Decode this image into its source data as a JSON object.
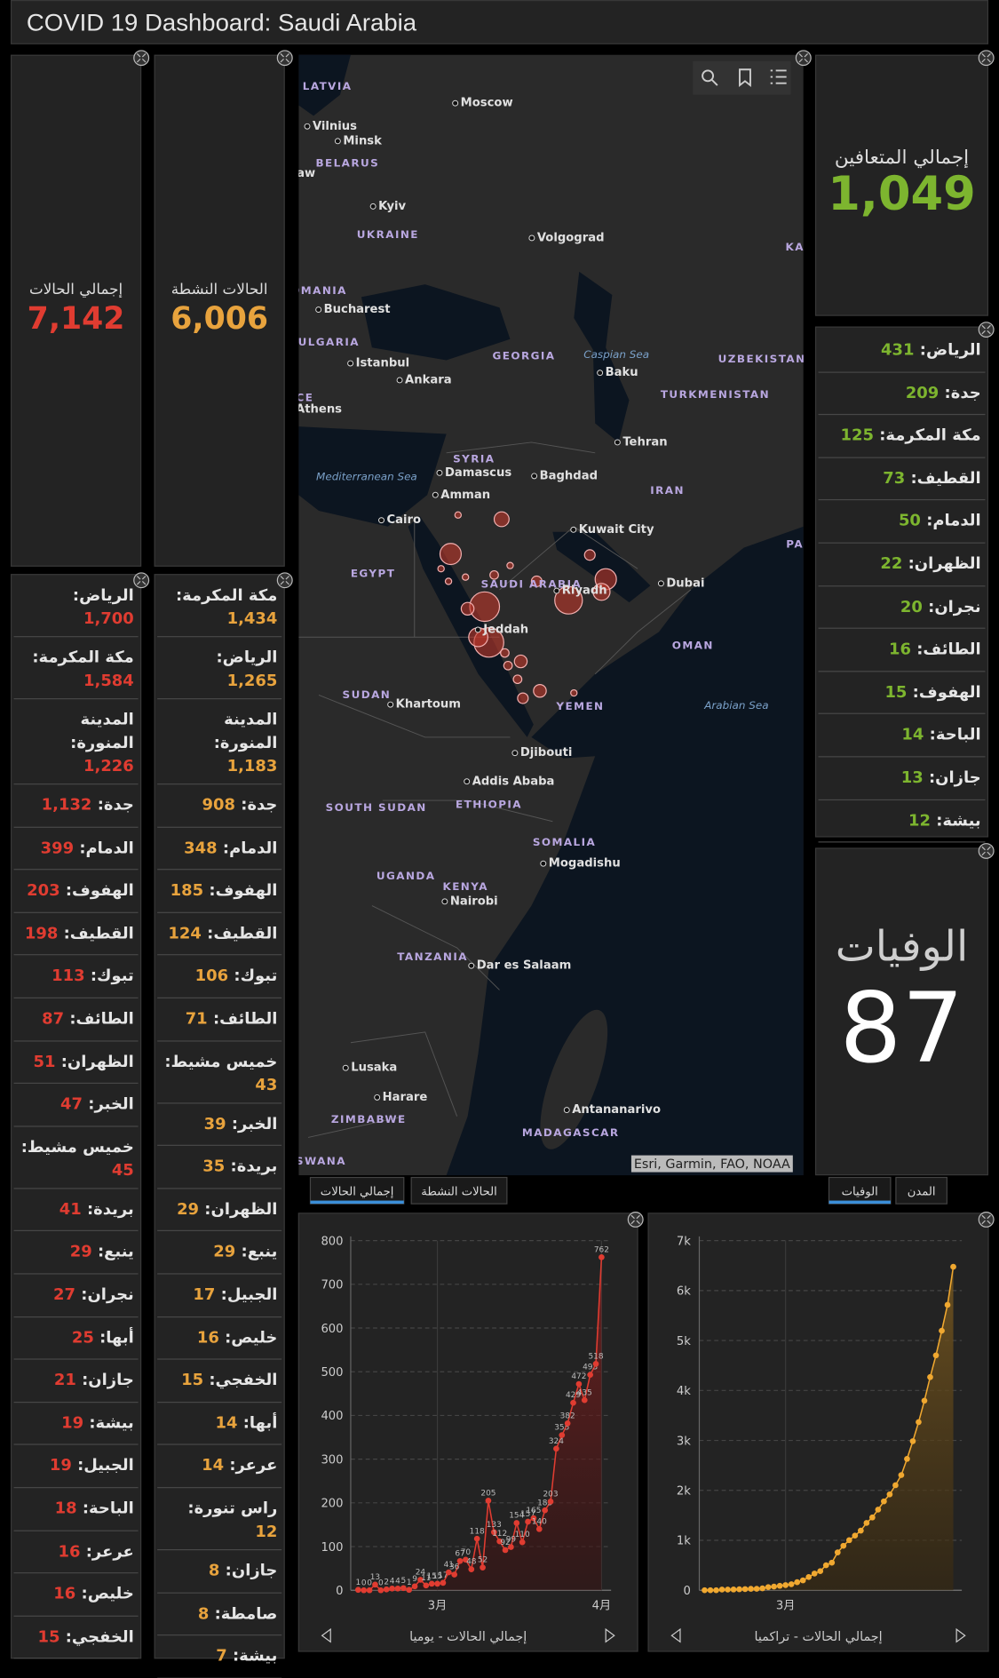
{
  "header": {
    "title": "COVID 19 Dashboard: Saudi Arabia"
  },
  "total_cases": {
    "label": "إجمالي الحالات",
    "value": "7,142"
  },
  "active_cases": {
    "label": "الحالات النشطة",
    "value": "6,006"
  },
  "recovered": {
    "label": "إجمالي المتعافين",
    "value": "1,049"
  },
  "deaths": {
    "label": "الوفيات",
    "value": "87"
  },
  "cases_by_city": [
    {
      "name": "الرياض:",
      "value": "1,700"
    },
    {
      "name": "مكة المكرمة:",
      "value": "1,584"
    },
    {
      "name": "المدينة المنورة:",
      "value": "1,226"
    },
    {
      "name": "جدة:",
      "value": "1,132"
    },
    {
      "name": "الدمام:",
      "value": "399"
    },
    {
      "name": "الهفوف:",
      "value": "203"
    },
    {
      "name": "القطيف:",
      "value": "198"
    },
    {
      "name": "تبوك:",
      "value": "113"
    },
    {
      "name": "الطائف:",
      "value": "87"
    },
    {
      "name": "الظهران:",
      "value": "51"
    },
    {
      "name": "الخبر:",
      "value": "47"
    },
    {
      "name": "خميس مشيط:",
      "value": "45"
    },
    {
      "name": "بريدة:",
      "value": "41"
    },
    {
      "name": "ينبع:",
      "value": "29"
    },
    {
      "name": "نجران:",
      "value": "27"
    },
    {
      "name": "أبها:",
      "value": "25"
    },
    {
      "name": "جازان:",
      "value": "21"
    },
    {
      "name": "بيشة:",
      "value": "19"
    },
    {
      "name": "الجبيل:",
      "value": "19"
    },
    {
      "name": "الباحة:",
      "value": "18"
    },
    {
      "name": "عرعر:",
      "value": "16"
    },
    {
      "name": "خليص:",
      "value": "16"
    },
    {
      "name": "الخفجي:",
      "value": "15"
    }
  ],
  "active_by_city": [
    {
      "name": "مكة المكرمة:",
      "value": "1,434"
    },
    {
      "name": "الرياض:",
      "value": "1,265"
    },
    {
      "name": "المدينة المنورة:",
      "value": "1,183"
    },
    {
      "name": "جدة:",
      "value": "908"
    },
    {
      "name": "الدمام:",
      "value": "348"
    },
    {
      "name": "الهفوف:",
      "value": "185"
    },
    {
      "name": "القطيف:",
      "value": "124"
    },
    {
      "name": "تبوك:",
      "value": "106"
    },
    {
      "name": "الطائف:",
      "value": "71"
    },
    {
      "name": "خميس مشيط:",
      "value": "43"
    },
    {
      "name": "الخبر:",
      "value": "39"
    },
    {
      "name": "بريدة:",
      "value": "35"
    },
    {
      "name": "الظهران:",
      "value": "29"
    },
    {
      "name": "ينبع:",
      "value": "29"
    },
    {
      "name": "الجبيل:",
      "value": "17"
    },
    {
      "name": "خليص:",
      "value": "16"
    },
    {
      "name": "الخفجي:",
      "value": "15"
    },
    {
      "name": "أبها:",
      "value": "14"
    },
    {
      "name": "عرعر:",
      "value": "14"
    },
    {
      "name": "راس تنورة:",
      "value": "12"
    },
    {
      "name": "جازان:",
      "value": "8"
    },
    {
      "name": "صامطة:",
      "value": "8"
    },
    {
      "name": "بيشة:",
      "value": "7"
    }
  ],
  "recovered_by_city": [
    {
      "name": "الرياض:",
      "value": "431"
    },
    {
      "name": "جدة:",
      "value": "209"
    },
    {
      "name": "مكة المكرمة:",
      "value": "125"
    },
    {
      "name": "القطيف:",
      "value": "73"
    },
    {
      "name": "الدمام:",
      "value": "50"
    },
    {
      "name": "الظهران:",
      "value": "22"
    },
    {
      "name": "نجران:",
      "value": "20"
    },
    {
      "name": "الطائف:",
      "value": "16"
    },
    {
      "name": "الهفوف:",
      "value": "15"
    },
    {
      "name": "الباحة:",
      "value": "14"
    },
    {
      "name": "جازان:",
      "value": "13"
    },
    {
      "name": "بيشة:",
      "value": "12"
    }
  ],
  "map": {
    "labels": [
      "LATVIA",
      "Moscow",
      "Vilnius",
      "Minsk",
      "BELARUS",
      "aw",
      "Kyiv",
      "UKRAINE",
      "Volgograd",
      "OMANIA",
      "Bucharest",
      "BULGARIA",
      "GEORGIA",
      "Caspian Sea",
      "UZBEKISTAN",
      "Istanbul",
      "Baku",
      "Ankara",
      "CE",
      "TURKMENISTAN",
      "Athens",
      "Tehran",
      "SYRIA",
      "Mediterranean Sea",
      "Damascus",
      "Baghdad",
      "IRAN",
      "Amman",
      "Cairo",
      "Kuwait City",
      "KA",
      "PA",
      "EGYPT",
      "SAUDI ARABIA",
      "Riyadh",
      "Dubai",
      "Jeddah",
      "OMAN",
      "SUDAN",
      "Khartoum",
      "Arabian Sea",
      "YEMEN",
      "Djibouti",
      "Addis Ababa",
      "SOUTH SUDAN",
      "ETHIOPIA",
      "SOMALIA",
      "Mogadishu",
      "UGANDA",
      "KENYA",
      "Nairobi",
      "TANZANIA",
      "Dar es Salaam",
      "Lusaka",
      "Harare",
      "Antananarivo",
      "ZIMBABWE",
      "MADAGASCAR",
      "SWANA"
    ],
    "attribution": "Esri, Garmin, FAO, NOAA"
  },
  "tabs_left": [
    "إجمالي الحالات",
    "الحالات النشطة"
  ],
  "tabs_right": [
    "الوفيات",
    "المدن"
  ],
  "chart_data": [
    {
      "type": "line",
      "title": "إجمالي الحالات - يوميا",
      "color": "#e03c31",
      "data_labels": true,
      "categories": [
        null,
        null,
        null,
        null,
        null,
        null,
        null,
        null,
        null,
        null,
        null,
        null,
        null,
        null,
        "3月",
        null,
        null,
        null,
        null,
        null,
        null,
        null,
        null,
        null,
        null,
        null,
        null,
        null,
        null,
        null,
        null,
        null,
        null,
        null,
        null,
        null,
        null,
        null,
        null,
        null,
        null,
        null,
        null,
        "4月"
      ],
      "values": [
        1,
        0,
        0,
        13,
        0,
        2,
        4,
        4,
        5,
        1,
        9,
        24,
        11,
        15,
        15,
        17,
        41,
        36,
        67,
        70,
        48,
        118,
        52,
        205,
        133,
        112,
        92,
        99,
        154,
        110,
        157,
        165,
        140,
        183,
        203,
        324,
        355,
        382,
        429,
        472,
        435,
        493,
        518,
        762
      ],
      "ylim": [
        0,
        800
      ],
      "yticks": [
        0,
        100,
        200,
        300,
        400,
        500,
        600,
        700,
        800
      ],
      "grid": true
    },
    {
      "type": "line",
      "title": "إجمالي الحالات - تراكميا",
      "color": "#f0a830",
      "data_labels": false,
      "categories": [
        null,
        null,
        null,
        null,
        null,
        null,
        null,
        null,
        null,
        null,
        null,
        null,
        null,
        null,
        "3月",
        null,
        null,
        null,
        null,
        null,
        null,
        null,
        null,
        null,
        null,
        null,
        null,
        null,
        null,
        null,
        null,
        null,
        null,
        null,
        null,
        null,
        null,
        null,
        null,
        null,
        null,
        null,
        null,
        null
      ],
      "values": [
        1,
        1,
        1,
        14,
        14,
        16,
        20,
        24,
        29,
        30,
        39,
        63,
        74,
        89,
        104,
        121,
        162,
        198,
        265,
        335,
        383,
        501,
        553,
        758,
        891,
        1003,
        1095,
        1194,
        1348,
        1458,
        1615,
        1780,
        1920,
        2103,
        2306,
        2630,
        2985,
        3367,
        3796,
        4268,
        4703,
        5196,
        5714,
        6476
      ],
      "ylim": [
        0,
        7000
      ],
      "yticks": [
        0,
        {
          "value": 1000,
          "label": "1k"
        },
        {
          "value": 2000,
          "label": "2k"
        },
        {
          "value": 3000,
          "label": "3k"
        },
        {
          "value": 4000,
          "label": "4k"
        },
        {
          "value": 5000,
          "label": "5k"
        },
        {
          "value": 6000,
          "label": "6k"
        },
        {
          "value": 7000,
          "label": "7k"
        }
      ],
      "grid": true
    }
  ]
}
